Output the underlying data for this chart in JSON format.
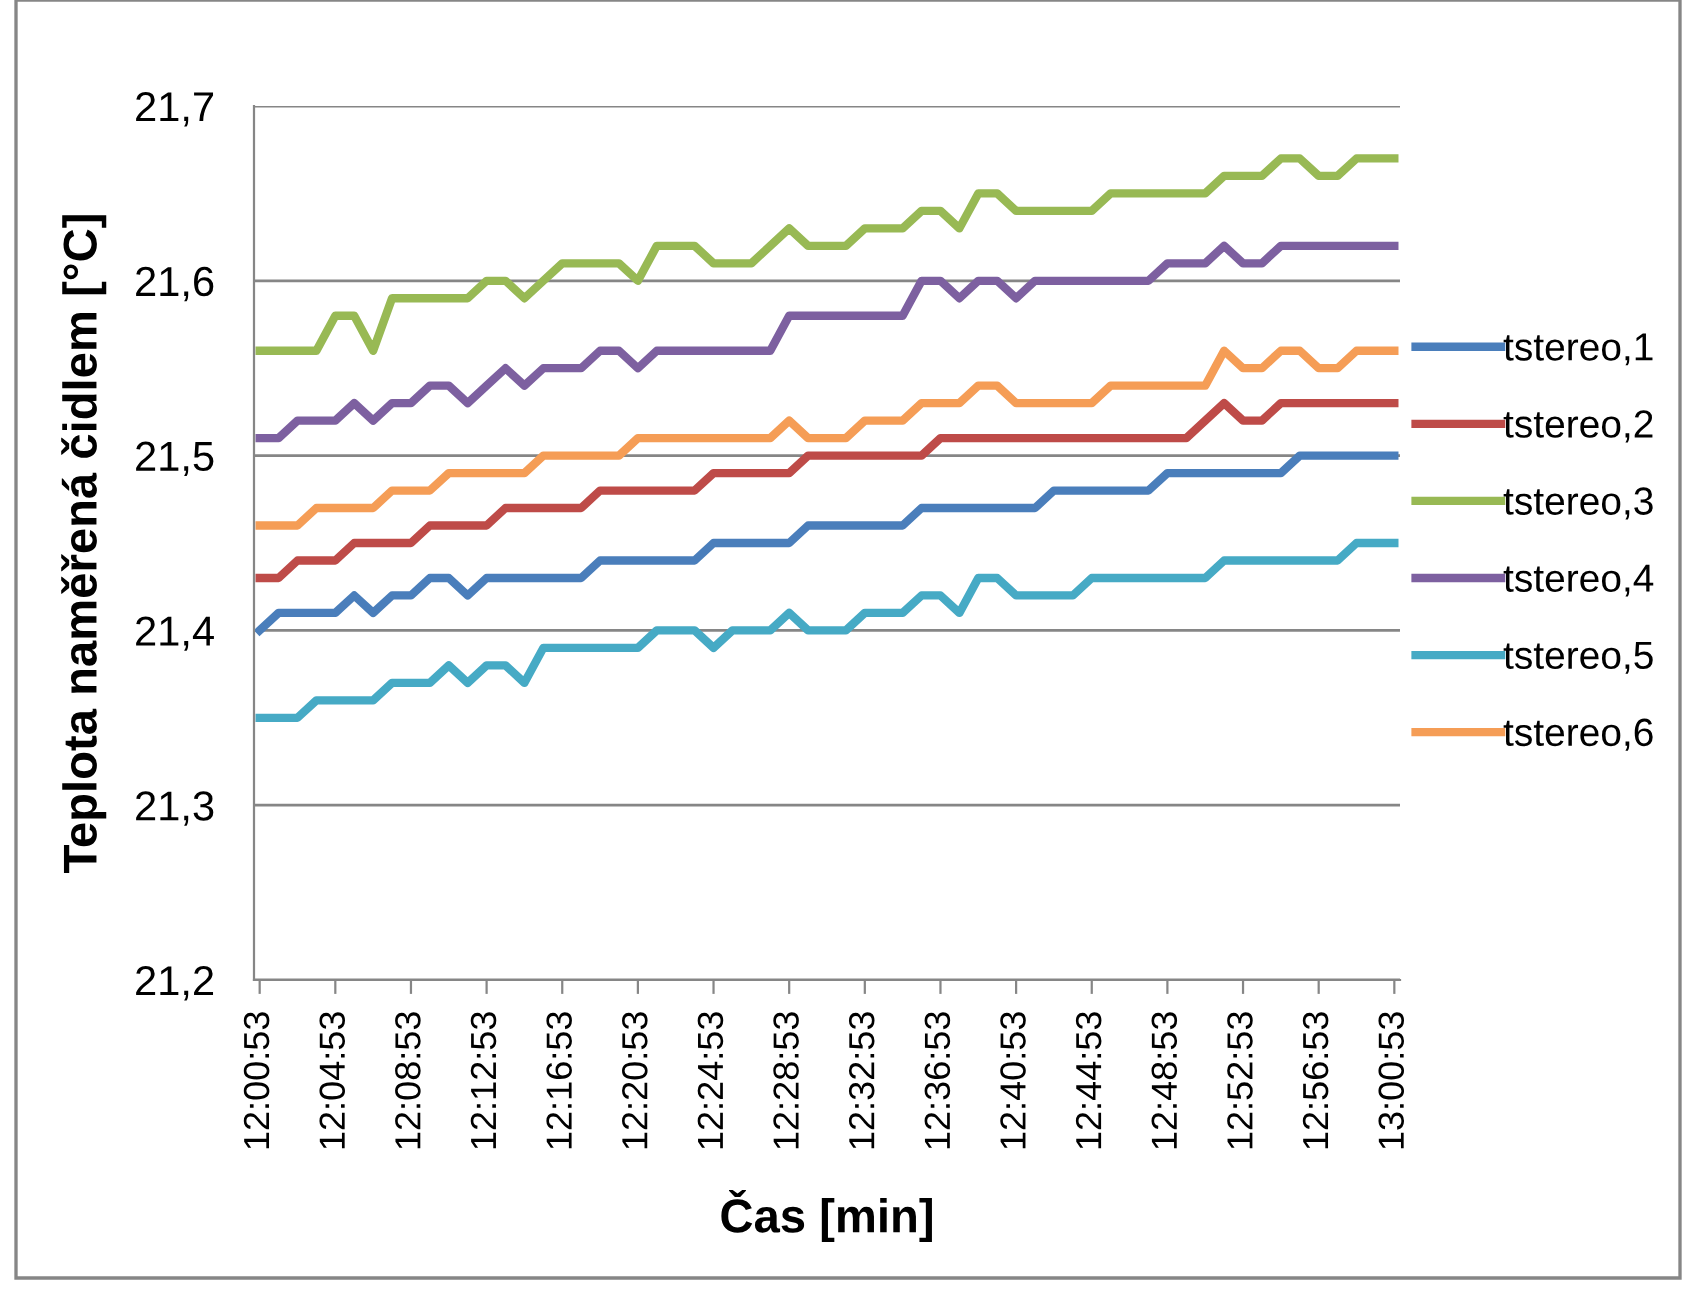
{
  "chart_data": {
    "type": "line",
    "xlabel": "Čas [min]",
    "ylabel": "Teplota naměřená čidlem [°C]",
    "categories": [
      "12:00:53",
      null,
      null,
      null,
      "12:04:53",
      null,
      null,
      null,
      "12:08:53",
      null,
      null,
      null,
      "12:12:53",
      null,
      null,
      null,
      "12:16:53",
      null,
      null,
      null,
      "12:20:53",
      null,
      null,
      null,
      "12:24:53",
      null,
      null,
      null,
      "12:28:53",
      null,
      null,
      null,
      "12:32:53",
      null,
      null,
      null,
      "12:36:53",
      null,
      null,
      null,
      "12:40:53",
      null,
      null,
      null,
      "12:44:53",
      null,
      null,
      null,
      "12:48:53",
      null,
      null,
      null,
      "12:52:53",
      null,
      null,
      null,
      "12:56:53",
      null,
      null,
      null,
      "13:00:53"
    ],
    "series": [
      {
        "name": "tstereo,1",
        "color": "#4a7ebb",
        "values": [
          21.4,
          21.41,
          21.41,
          21.41,
          21.41,
          21.42,
          21.41,
          21.42,
          21.42,
          21.43,
          21.43,
          21.42,
          21.43,
          21.43,
          21.43,
          21.43,
          21.43,
          21.43,
          21.44,
          21.44,
          21.44,
          21.44,
          21.44,
          21.44,
          21.45,
          21.45,
          21.45,
          21.45,
          21.45,
          21.46,
          21.46,
          21.46,
          21.46,
          21.46,
          21.46,
          21.47,
          21.47,
          21.47,
          21.47,
          21.47,
          21.47,
          21.47,
          21.48,
          21.48,
          21.48,
          21.48,
          21.48,
          21.48,
          21.49,
          21.49,
          21.49,
          21.49,
          21.49,
          21.49,
          21.49,
          21.5,
          21.5,
          21.5,
          21.5,
          21.5,
          21.5
        ]
      },
      {
        "name": "tstereo,2",
        "color": "#be4b48",
        "values": [
          21.43,
          21.43,
          21.44,
          21.44,
          21.44,
          21.45,
          21.45,
          21.45,
          21.45,
          21.46,
          21.46,
          21.46,
          21.46,
          21.47,
          21.47,
          21.47,
          21.47,
          21.47,
          21.48,
          21.48,
          21.48,
          21.48,
          21.48,
          21.48,
          21.49,
          21.49,
          21.49,
          21.49,
          21.49,
          21.5,
          21.5,
          21.5,
          21.5,
          21.5,
          21.5,
          21.5,
          21.51,
          21.51,
          21.51,
          21.51,
          21.51,
          21.51,
          21.51,
          21.51,
          21.51,
          21.51,
          21.51,
          21.51,
          21.51,
          21.51,
          21.52,
          21.53,
          21.52,
          21.52,
          21.53,
          21.53,
          21.53,
          21.53,
          21.53,
          21.53,
          21.53
        ]
      },
      {
        "name": "tstereo,3",
        "color": "#98b954",
        "values": [
          21.56,
          21.56,
          21.56,
          21.56,
          21.58,
          21.58,
          21.56,
          21.59,
          21.59,
          21.59,
          21.59,
          21.59,
          21.6,
          21.6,
          21.59,
          21.6,
          21.61,
          21.61,
          21.61,
          21.61,
          21.6,
          21.62,
          21.62,
          21.62,
          21.61,
          21.61,
          21.61,
          21.62,
          21.63,
          21.62,
          21.62,
          21.62,
          21.63,
          21.63,
          21.63,
          21.64,
          21.64,
          21.63,
          21.65,
          21.65,
          21.64,
          21.64,
          21.64,
          21.64,
          21.64,
          21.65,
          21.65,
          21.65,
          21.65,
          21.65,
          21.65,
          21.66,
          21.66,
          21.66,
          21.67,
          21.67,
          21.66,
          21.66,
          21.67,
          21.67,
          21.67
        ]
      },
      {
        "name": "tstereo,4",
        "color": "#7d60a0",
        "values": [
          21.51,
          21.51,
          21.52,
          21.52,
          21.52,
          21.53,
          21.52,
          21.53,
          21.53,
          21.54,
          21.54,
          21.53,
          21.54,
          21.55,
          21.54,
          21.55,
          21.55,
          21.55,
          21.56,
          21.56,
          21.55,
          21.56,
          21.56,
          21.56,
          21.56,
          21.56,
          21.56,
          21.56,
          21.58,
          21.58,
          21.58,
          21.58,
          21.58,
          21.58,
          21.58,
          21.6,
          21.6,
          21.59,
          21.6,
          21.6,
          21.59,
          21.6,
          21.6,
          21.6,
          21.6,
          21.6,
          21.6,
          21.6,
          21.61,
          21.61,
          21.61,
          21.62,
          21.61,
          21.61,
          21.62,
          21.62,
          21.62,
          21.62,
          21.62,
          21.62,
          21.62
        ]
      },
      {
        "name": "tstereo,5",
        "color": "#46aac5",
        "values": [
          21.35,
          21.35,
          21.35,
          21.36,
          21.36,
          21.36,
          21.36,
          21.37,
          21.37,
          21.37,
          21.38,
          21.37,
          21.38,
          21.38,
          21.37,
          21.39,
          21.39,
          21.39,
          21.39,
          21.39,
          21.39,
          21.4,
          21.4,
          21.4,
          21.39,
          21.4,
          21.4,
          21.4,
          21.41,
          21.4,
          21.4,
          21.4,
          21.41,
          21.41,
          21.41,
          21.42,
          21.42,
          21.41,
          21.43,
          21.43,
          21.42,
          21.42,
          21.42,
          21.42,
          21.43,
          21.43,
          21.43,
          21.43,
          21.43,
          21.43,
          21.43,
          21.44,
          21.44,
          21.44,
          21.44,
          21.44,
          21.44,
          21.44,
          21.45,
          21.45,
          21.45
        ]
      },
      {
        "name": "tstereo,6",
        "color": "#f59d56",
        "values": [
          21.46,
          21.46,
          21.46,
          21.47,
          21.47,
          21.47,
          21.47,
          21.48,
          21.48,
          21.48,
          21.49,
          21.49,
          21.49,
          21.49,
          21.49,
          21.5,
          21.5,
          21.5,
          21.5,
          21.5,
          21.51,
          21.51,
          21.51,
          21.51,
          21.51,
          21.51,
          21.51,
          21.51,
          21.52,
          21.51,
          21.51,
          21.51,
          21.52,
          21.52,
          21.52,
          21.53,
          21.53,
          21.53,
          21.54,
          21.54,
          21.53,
          21.53,
          21.53,
          21.53,
          21.53,
          21.54,
          21.54,
          21.54,
          21.54,
          21.54,
          21.54,
          21.56,
          21.55,
          21.55,
          21.56,
          21.56,
          21.55,
          21.55,
          21.56,
          21.56,
          21.56
        ]
      }
    ],
    "ylim": [
      21.2,
      21.7
    ],
    "yticks": [
      {
        "value": 21.2,
        "label": "21,2"
      },
      {
        "value": 21.3,
        "label": "21,3"
      },
      {
        "value": 21.4,
        "label": "21,4"
      },
      {
        "value": 21.5,
        "label": "21,5"
      },
      {
        "value": 21.6,
        "label": "21,6"
      },
      {
        "value": 21.7,
        "label": "21,7"
      }
    ],
    "grid": "y",
    "legend": "right",
    "marker": "none",
    "line_style": "solid"
  }
}
